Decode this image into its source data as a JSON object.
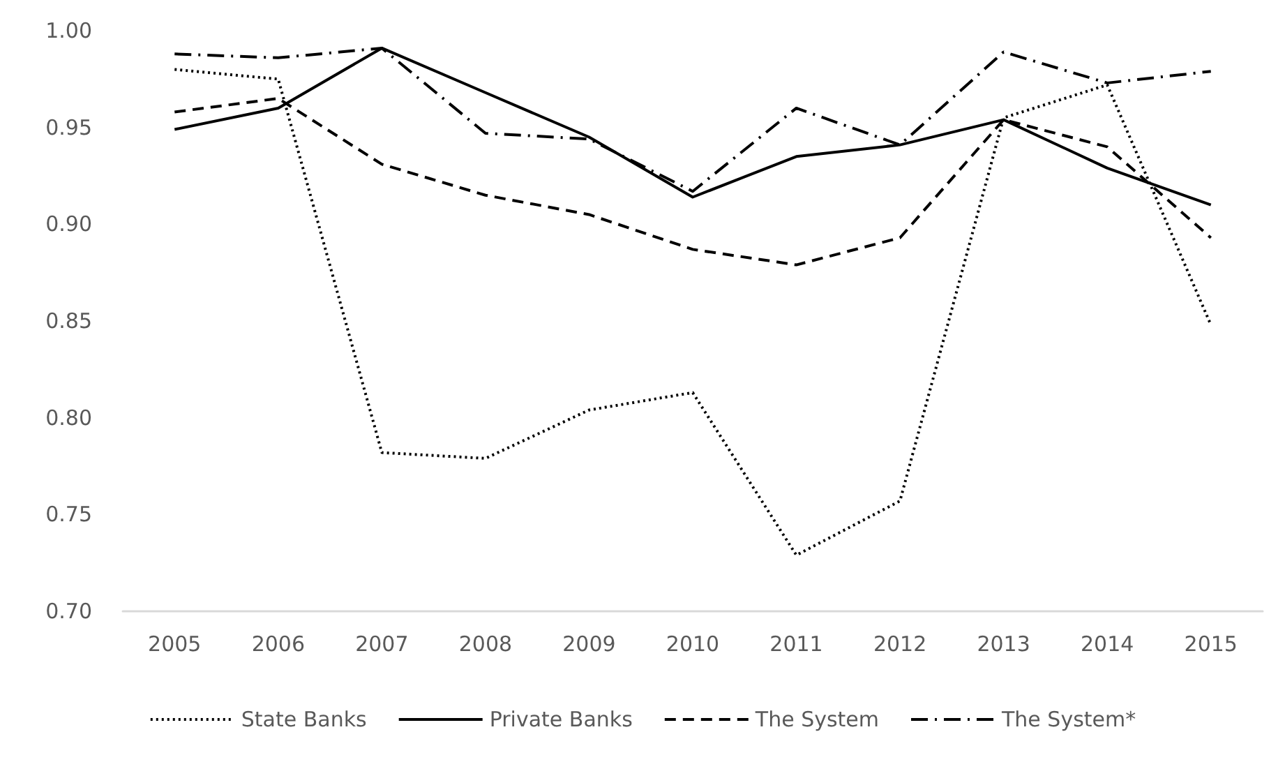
{
  "chart_data": {
    "type": "line",
    "categories": [
      "2005",
      "2006",
      "2007",
      "2008",
      "2009",
      "2010",
      "2011",
      "2012",
      "2013",
      "2014",
      "2015"
    ],
    "series": [
      {
        "name": "State Banks",
        "color": "#000000",
        "line_style": "dotted",
        "values": [
          0.98,
          0.975,
          0.782,
          0.779,
          0.804,
          0.813,
          0.729,
          0.757,
          0.955,
          0.972,
          0.848
        ]
      },
      {
        "name": "Private Banks",
        "color": "#000000",
        "line_style": "solid",
        "values": [
          0.949,
          0.96,
          0.991,
          0.968,
          0.945,
          0.914,
          0.935,
          0.941,
          0.954,
          0.929,
          0.91
        ]
      },
      {
        "name": "The System",
        "color": "#000000",
        "line_style": "dashed",
        "values": [
          0.958,
          0.965,
          0.931,
          0.915,
          0.905,
          0.887,
          0.879,
          0.893,
          0.954,
          0.94,
          0.893
        ]
      },
      {
        "name": "The System*",
        "color": "#000000",
        "line_style": "dashdot",
        "values": [
          0.988,
          0.986,
          0.991,
          0.947,
          0.944,
          0.917,
          0.96,
          0.941,
          0.989,
          0.973,
          0.979
        ]
      }
    ],
    "ylim": [
      0.7,
      1.0
    ],
    "yticks": [
      {
        "value": 0.7,
        "label": "0.70"
      },
      0.75,
      {
        "value": 0.8,
        "label": "0.80"
      },
      0.85,
      {
        "value": 0.9,
        "label": "0.90"
      },
      0.95,
      {
        "value": 1.0,
        "label": "1.00"
      }
    ],
    "grid": false,
    "legend": "bottom",
    "marker": "none"
  }
}
